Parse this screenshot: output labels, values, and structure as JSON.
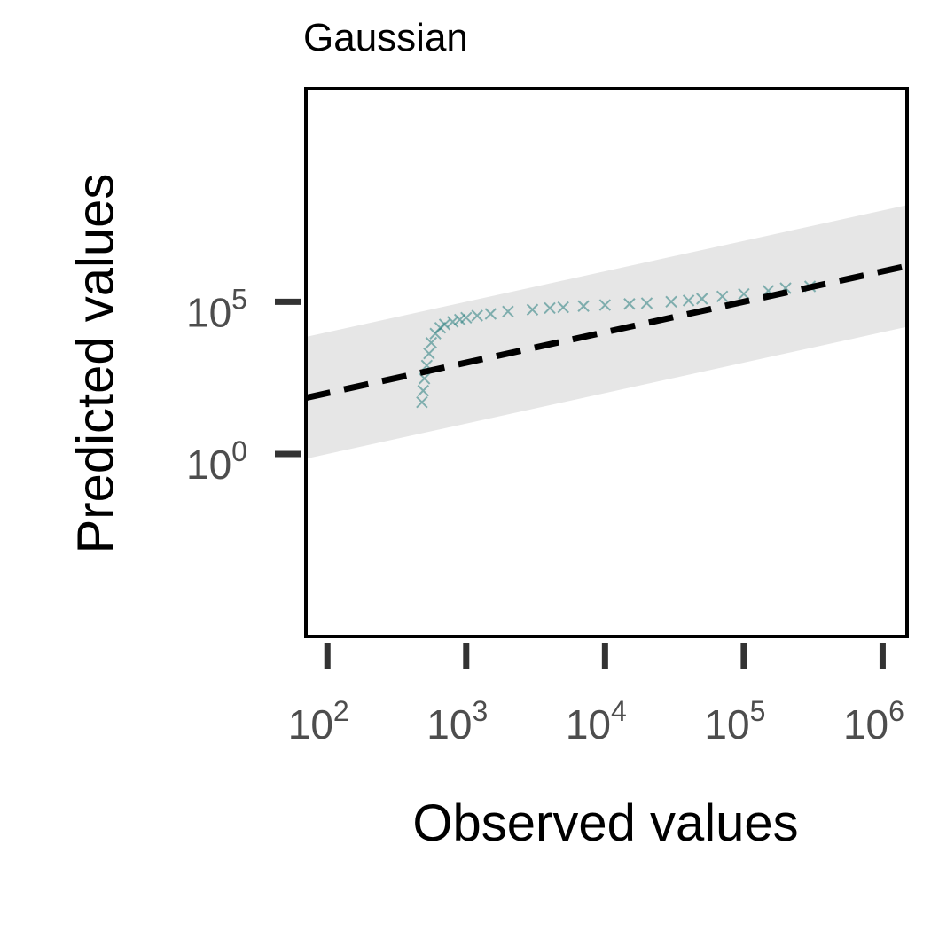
{
  "chart_data": {
    "type": "scatter",
    "title": "Gaussian",
    "xlabel": "Observed values",
    "ylabel": "Predicted values",
    "x_scale": "log10",
    "y_scale": "log10",
    "xlim": [
      70,
      1500000
    ],
    "ylim": [
      1e-06,
      1000000000000
    ],
    "x_ticks": [
      {
        "value": 100,
        "base": "10",
        "exp": "2"
      },
      {
        "value": 1000,
        "base": "10",
        "exp": "3"
      },
      {
        "value": 10000,
        "base": "10",
        "exp": "4"
      },
      {
        "value": 100000,
        "base": "10",
        "exp": "5"
      },
      {
        "value": 1000000,
        "base": "10",
        "exp": "6"
      }
    ],
    "y_ticks": [
      {
        "value": 1,
        "base": "10",
        "exp": "0"
      },
      {
        "value": 100000,
        "base": "10",
        "exp": "5"
      }
    ],
    "point_marker": "x",
    "point_color": "#2a7f7f",
    "reference_line": {
      "style": "dashed",
      "color": "#000000",
      "x": [
        70,
        1500000
      ],
      "y": [
        70,
        1500000
      ]
    },
    "reference_band": {
      "color": "#e6e6e6",
      "lower_factor": 0.01,
      "upper_factor": 100
    },
    "series": [
      {
        "points": [
          [
            480,
            50
          ],
          [
            490,
            120
          ],
          [
            500,
            300
          ],
          [
            520,
            800
          ],
          [
            540,
            2000
          ],
          [
            560,
            4500
          ],
          [
            600,
            9000
          ],
          [
            650,
            14000
          ],
          [
            700,
            18000
          ],
          [
            800,
            22000
          ],
          [
            900,
            26000
          ],
          [
            1000,
            30000
          ],
          [
            1200,
            35000
          ],
          [
            1500,
            40000
          ],
          [
            2000,
            48000
          ],
          [
            3000,
            55000
          ],
          [
            4000,
            62000
          ],
          [
            5000,
            66000
          ],
          [
            7000,
            72000
          ],
          [
            10000,
            78000
          ],
          [
            15000,
            85000
          ],
          [
            20000,
            90000
          ],
          [
            30000,
            100000
          ],
          [
            40000,
            110000
          ],
          [
            50000,
            125000
          ],
          [
            70000,
            150000
          ],
          [
            100000,
            180000
          ],
          [
            150000,
            230000
          ],
          [
            200000,
            280000
          ],
          [
            300000,
            320000
          ]
        ]
      }
    ]
  }
}
